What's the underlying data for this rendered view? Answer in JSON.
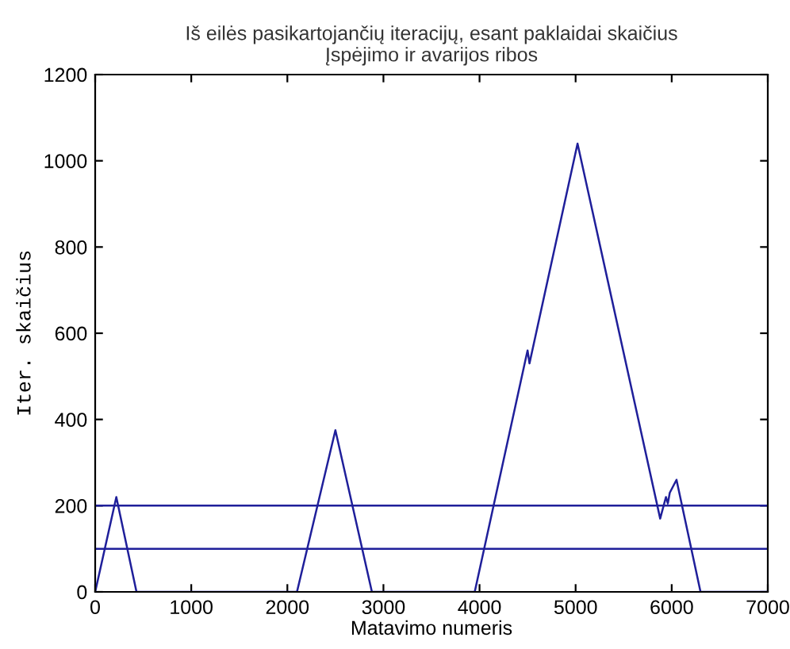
{
  "chart_data": {
    "type": "line",
    "title": "Iš eilės pasikartojančių iteracijų, esant paklaidai skaičius\nĮspėjimo ir avarijos ribos",
    "xlabel": "Matavimo numeris",
    "ylabel": "Iter. skaičius",
    "x": [
      0,
      220,
      430,
      2100,
      2500,
      2880,
      3950,
      4480,
      4500,
      4520,
      5020,
      5880,
      5940,
      5960,
      5980,
      6050,
      6300,
      7000
    ],
    "series": [
      {
        "color": "#1f1f9a",
        "values": [
          0,
          220,
          0,
          0,
          375,
          0,
          0,
          540,
          560,
          530,
          1040,
          170,
          220,
          205,
          230,
          260,
          0,
          0
        ]
      }
    ],
    "xlim": [
      0,
      7000
    ],
    "ylim": [
      0,
      1200
    ],
    "xticks": [
      0,
      1000,
      2000,
      3000,
      4000,
      5000,
      6000,
      7000
    ],
    "yticks": [
      0,
      200,
      400,
      600,
      800,
      1000,
      1200
    ],
    "ref_lines": [
      {
        "axis": "y",
        "value": 200,
        "color": "#1f1f9a"
      },
      {
        "axis": "y",
        "value": 100,
        "color": "#1f1f9a"
      }
    ],
    "grid": false,
    "legend": false,
    "marker": "none",
    "line_style": "solid"
  }
}
